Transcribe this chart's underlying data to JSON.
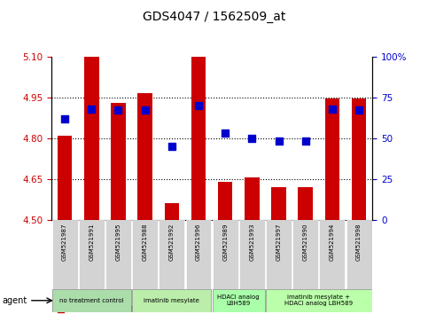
{
  "title": "GDS4047 / 1562509_at",
  "samples": [
    "GSM521987",
    "GSM521991",
    "GSM521995",
    "GSM521988",
    "GSM521992",
    "GSM521996",
    "GSM521989",
    "GSM521993",
    "GSM521997",
    "GSM521990",
    "GSM521994",
    "GSM521998"
  ],
  "bar_values": [
    4.81,
    5.1,
    4.93,
    4.967,
    4.56,
    5.1,
    4.64,
    4.655,
    4.62,
    4.62,
    4.945,
    4.945
  ],
  "percentile_values": [
    62,
    68,
    67,
    67,
    45,
    70,
    53,
    50,
    48,
    48,
    68,
    67
  ],
  "bar_bottom": 4.5,
  "ylim_left": [
    4.5,
    5.1
  ],
  "ylim_right": [
    0,
    100
  ],
  "yticks_left": [
    4.5,
    4.65,
    4.8,
    4.95,
    5.1
  ],
  "yticks_right": [
    0,
    25,
    50,
    75,
    100
  ],
  "ytick_labels_right": [
    "0",
    "25",
    "50",
    "75",
    "100%"
  ],
  "bar_color": "#cc0000",
  "dot_color": "#0000cc",
  "bg_color": "#ffffff",
  "agent_groups": [
    {
      "label": "no treatment control",
      "start": 0,
      "end": 3,
      "color": "#aaddaa"
    },
    {
      "label": "imatinib mesylate",
      "start": 3,
      "end": 6,
      "color": "#bbeeaa"
    },
    {
      "label": "HDACi analog\nLBH589",
      "start": 6,
      "end": 8,
      "color": "#aaffaa"
    },
    {
      "label": "imatinib mesylate +\nHDACi analog LBH589",
      "start": 8,
      "end": 12,
      "color": "#bbffaa"
    }
  ],
  "tick_color_left": "#cc0000",
  "tick_color_right": "#0000cc"
}
